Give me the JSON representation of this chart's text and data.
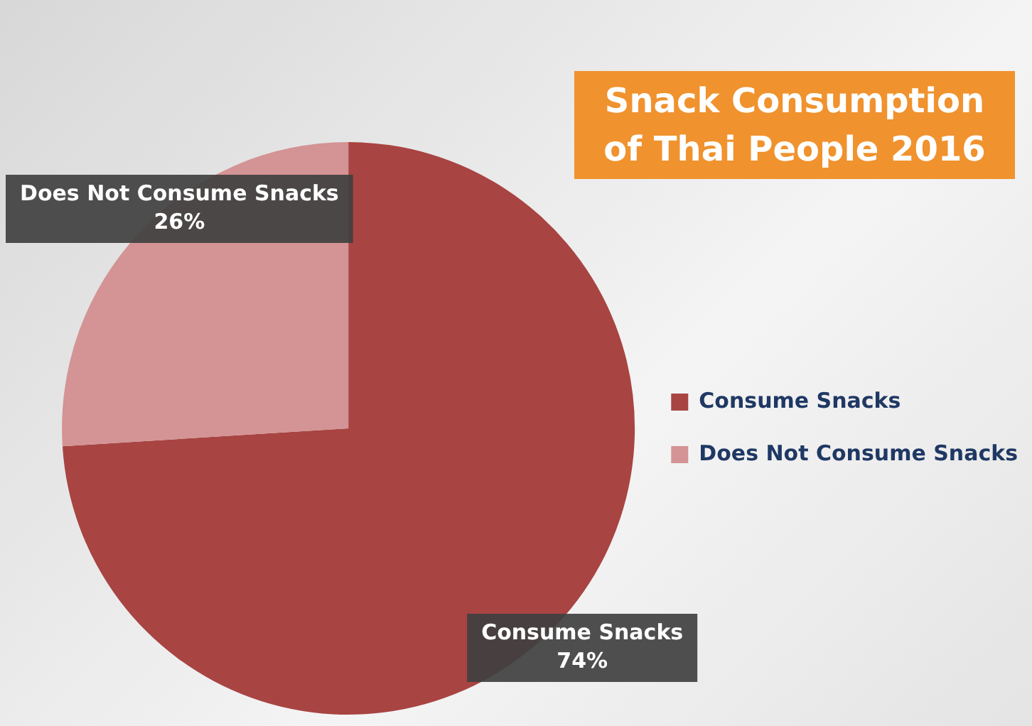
{
  "chart_data": {
    "type": "pie",
    "title": "Snack Consumption of Thai People 2016",
    "categories": [
      "Consume Snacks",
      "Does Not Consume Snacks"
    ],
    "values": [
      74,
      26
    ],
    "colors": [
      "#a84442",
      "#d49394"
    ],
    "value_labels": [
      "74%",
      "26%"
    ],
    "legend": "right"
  }
}
